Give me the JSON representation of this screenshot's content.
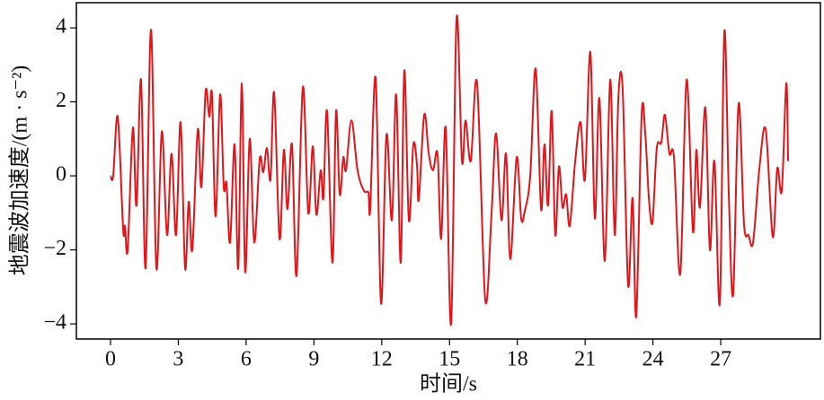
{
  "chart_data": {
    "type": "line",
    "xlabel": "时间/s",
    "ylabel": "地震波加速度/(m · s⁻²)",
    "xlim": [
      -1.51,
      31.41
    ],
    "ylim": [
      -4.41,
      4.68
    ],
    "xticks": [
      0,
      3,
      6,
      9,
      12,
      15,
      18,
      21,
      24,
      27
    ],
    "yticks": [
      {
        "value": -4,
        "label": "−4"
      },
      {
        "value": -2,
        "label": "−2"
      },
      0,
      2,
      4
    ],
    "series": [
      {
        "color": "#e0161b",
        "x": [
          0,
          0.12,
          0.32,
          0.56,
          0.64,
          0.76,
          0.99,
          1.15,
          1.35,
          1.55,
          1.79,
          2.03,
          2.27,
          2.5,
          2.7,
          2.9,
          3.1,
          3.3,
          3.46,
          3.62,
          3.86,
          4.02,
          4.21,
          4.37,
          4.49,
          4.65,
          4.85,
          5.01,
          5.13,
          5.29,
          5.49,
          5.65,
          5.81,
          5.96,
          6.16,
          6.36,
          6.6,
          6.76,
          6.92,
          7.08,
          7.24,
          7.48,
          7.67,
          7.83,
          8.03,
          8.23,
          8.51,
          8.75,
          8.95,
          9.11,
          9.3,
          9.42,
          9.58,
          9.82,
          9.98,
          10.14,
          10.3,
          10.42,
          10.66,
          10.93,
          11.21,
          11.41,
          11.49,
          11.73,
          11.97,
          12.21,
          12.45,
          12.64,
          12.84,
          13.0,
          13.2,
          13.4,
          13.56,
          13.64,
          13.88,
          14.08,
          14.27,
          14.47,
          14.63,
          14.83,
          15.07,
          15.31,
          15.55,
          15.71,
          15.94,
          16.22,
          16.58,
          16.86,
          17.06,
          17.3,
          17.5,
          17.69,
          17.97,
          18.17,
          18.33,
          18.57,
          18.81,
          19.05,
          19.2,
          19.36,
          19.52,
          19.68,
          19.84,
          20.0,
          20.16,
          20.32,
          20.56,
          20.8,
          20.99,
          21.23,
          21.43,
          21.63,
          21.87,
          22.11,
          22.31,
          22.47,
          22.66,
          22.9,
          23.1,
          23.26,
          23.5,
          23.66,
          23.82,
          23.98,
          24.17,
          24.37,
          24.53,
          24.73,
          24.93,
          25.21,
          25.49,
          25.77,
          25.92,
          26.08,
          26.32,
          26.52,
          26.72,
          26.96,
          27.16,
          27.36,
          27.55,
          27.79,
          28.03,
          28.23,
          28.43,
          28.71,
          28.99,
          29.3,
          29.5,
          29.7,
          29.9,
          29.98
        ],
        "values": [
          0,
          0,
          1.6,
          -1.45,
          -1.35,
          -2.0,
          1.3,
          -0.8,
          2.6,
          -2.5,
          3.95,
          -2.5,
          1.2,
          -1.6,
          0.6,
          -1.6,
          1.45,
          -2.5,
          -0.7,
          -2.0,
          1.25,
          -0.3,
          2.3,
          1.6,
          2.2,
          -1.1,
          2.2,
          -0.3,
          -0.2,
          -1.8,
          0.85,
          -2.5,
          2.5,
          -2.6,
          1.0,
          -1.8,
          0.45,
          0.1,
          0.75,
          -0.1,
          2.25,
          -1.7,
          0.7,
          -0.9,
          0.85,
          -2.7,
          2.4,
          -1.0,
          0.8,
          -1.05,
          0.15,
          -0.6,
          1.75,
          -2.35,
          1.75,
          -0.5,
          0.5,
          0.15,
          1.5,
          0.15,
          -0.4,
          -0.45,
          -0.9,
          2.65,
          -3.45,
          1.1,
          -1.2,
          2.2,
          -2.35,
          2.85,
          -1.2,
          0.85,
          0.3,
          -0.65,
          1.65,
          0.6,
          0.15,
          0.6,
          -1.7,
          1.3,
          -4.0,
          4.25,
          0.4,
          1.5,
          0.4,
          2.5,
          -3.35,
          -1.0,
          1.15,
          -1.2,
          0.6,
          -2.25,
          0.5,
          -1.15,
          -0.95,
          0.0,
          2.9,
          -0.9,
          0.85,
          -0.8,
          1.75,
          -1.6,
          0.25,
          -0.85,
          -0.5,
          -1.35,
          0.4,
          1.45,
          -0.1,
          3.35,
          -1.15,
          2.1,
          -2.3,
          2.6,
          -1.6,
          2.1,
          2.35,
          -2.95,
          -0.6,
          -3.8,
          1.65,
          1.15,
          -0.6,
          -1.25,
          0.75,
          0.9,
          1.65,
          0.6,
          0.5,
          -2.65,
          2.6,
          -1.5,
          0.7,
          -0.85,
          1.85,
          -2.0,
          0.4,
          -3.45,
          3.9,
          -0.6,
          -3.2,
          1.95,
          -1.3,
          -1.6,
          -1.8,
          0.2,
          1.25,
          -1.65,
          0.2,
          -0.4,
          2.5,
          0.4
        ]
      }
    ]
  }
}
